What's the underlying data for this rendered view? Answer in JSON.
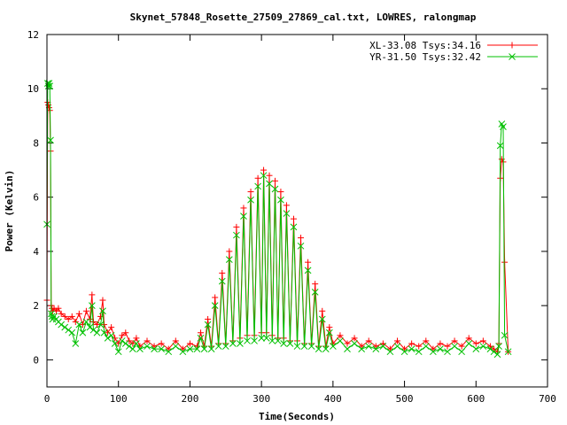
{
  "chart_data": {
    "type": "line",
    "title": "Skynet_57848_Rosette_27509_27869_cal.txt, LOWRES, ralongmap",
    "xlabel": "Time(Seconds)",
    "ylabel": "Power (Kelvin)",
    "xlim": [
      0,
      700
    ],
    "ylim": [
      -1,
      12
    ],
    "xticks": [
      0,
      100,
      200,
      300,
      400,
      500,
      600,
      700
    ],
    "yticks": [
      0,
      2,
      4,
      6,
      8,
      10,
      12
    ],
    "grid": false,
    "legend_position": "top-right",
    "markers": "points",
    "series": [
      {
        "name": "XL-33.08 Tsys:34.16",
        "color": "#ff0000",
        "marker": "plus",
        "x": [
          0,
          1,
          2,
          3,
          4,
          5,
          6,
          7,
          8,
          10,
          13,
          16,
          20,
          25,
          30,
          35,
          40,
          45,
          50,
          55,
          60,
          63,
          65,
          70,
          75,
          78,
          80,
          85,
          90,
          95,
          100,
          105,
          110,
          115,
          120,
          125,
          130,
          140,
          150,
          160,
          170,
          180,
          190,
          200,
          210,
          215,
          220,
          225,
          230,
          235,
          240,
          245,
          250,
          255,
          260,
          265,
          270,
          275,
          280,
          285,
          290,
          295,
          300,
          303,
          307,
          311,
          315,
          319,
          323,
          327,
          331,
          335,
          340,
          345,
          350,
          355,
          360,
          365,
          370,
          375,
          380,
          385,
          390,
          395,
          400,
          410,
          420,
          430,
          440,
          450,
          460,
          470,
          480,
          490,
          500,
          510,
          520,
          530,
          540,
          550,
          560,
          570,
          580,
          590,
          600,
          610,
          620,
          625,
          630,
          632,
          634,
          636,
          638,
          640,
          645
        ],
        "values": [
          2.2,
          9.5,
          9.4,
          9.3,
          9.2,
          7.7,
          2.0,
          1.9,
          1.8,
          1.9,
          1.8,
          1.9,
          1.7,
          1.6,
          1.5,
          1.6,
          1.4,
          1.7,
          1.3,
          1.8,
          1.5,
          2.4,
          1.4,
          1.3,
          1.6,
          2.2,
          1.3,
          1.0,
          1.2,
          0.8,
          0.6,
          0.9,
          1.0,
          0.7,
          0.6,
          0.8,
          0.5,
          0.7,
          0.5,
          0.6,
          0.4,
          0.7,
          0.4,
          0.6,
          0.5,
          1.0,
          0.5,
          1.5,
          0.5,
          2.3,
          0.6,
          3.2,
          0.6,
          4.0,
          0.7,
          4.9,
          0.8,
          5.6,
          0.9,
          6.2,
          0.9,
          6.7,
          1.0,
          7.0,
          1.0,
          6.8,
          0.9,
          6.6,
          0.8,
          6.2,
          0.8,
          5.7,
          0.7,
          5.2,
          0.7,
          4.5,
          0.6,
          3.6,
          0.6,
          2.8,
          0.5,
          1.8,
          0.5,
          1.2,
          0.6,
          0.9,
          0.6,
          0.8,
          0.5,
          0.7,
          0.5,
          0.6,
          0.4,
          0.7,
          0.4,
          0.6,
          0.5,
          0.7,
          0.4,
          0.6,
          0.5,
          0.7,
          0.5,
          0.8,
          0.6,
          0.7,
          0.5,
          0.4,
          0.3,
          0.6,
          6.7,
          7.4,
          7.3,
          3.6,
          0.3
        ]
      },
      {
        "name": "YR-31.50 Tsys:32.42",
        "color": "#00c000",
        "marker": "cross",
        "x": [
          0,
          1,
          2,
          3,
          4,
          5,
          6,
          7,
          8,
          10,
          13,
          16,
          20,
          25,
          30,
          35,
          40,
          45,
          50,
          55,
          60,
          63,
          65,
          70,
          75,
          78,
          80,
          85,
          90,
          95,
          100,
          105,
          110,
          115,
          120,
          125,
          130,
          140,
          150,
          160,
          170,
          180,
          190,
          200,
          210,
          215,
          220,
          225,
          230,
          235,
          240,
          245,
          250,
          255,
          260,
          265,
          270,
          275,
          280,
          285,
          290,
          295,
          300,
          303,
          307,
          311,
          315,
          319,
          323,
          327,
          331,
          335,
          340,
          345,
          350,
          355,
          360,
          365,
          370,
          375,
          380,
          385,
          390,
          395,
          400,
          410,
          420,
          430,
          440,
          450,
          460,
          470,
          480,
          490,
          500,
          510,
          520,
          530,
          540,
          550,
          560,
          570,
          580,
          590,
          600,
          610,
          620,
          625,
          630,
          632,
          634,
          636,
          638,
          640,
          645
        ],
        "values": [
          5.0,
          10.2,
          10.1,
          10.2,
          10.1,
          8.1,
          1.7,
          1.6,
          1.5,
          1.6,
          1.5,
          1.4,
          1.3,
          1.2,
          1.1,
          1.0,
          0.6,
          1.3,
          1.0,
          1.4,
          1.2,
          2.0,
          1.1,
          1.0,
          1.3,
          1.8,
          1.0,
          0.8,
          0.9,
          0.6,
          0.3,
          0.7,
          0.6,
          0.5,
          0.4,
          0.6,
          0.4,
          0.5,
          0.4,
          0.4,
          0.3,
          0.5,
          0.3,
          0.4,
          0.4,
          0.8,
          0.4,
          1.3,
          0.4,
          2.0,
          0.5,
          2.9,
          0.5,
          3.7,
          0.6,
          4.6,
          0.6,
          5.3,
          0.7,
          5.9,
          0.7,
          6.4,
          0.8,
          6.8,
          0.8,
          6.5,
          0.7,
          6.3,
          0.7,
          5.9,
          0.6,
          5.4,
          0.6,
          4.9,
          0.5,
          4.2,
          0.5,
          3.3,
          0.5,
          2.5,
          0.4,
          1.5,
          0.4,
          1.0,
          0.5,
          0.7,
          0.4,
          0.6,
          0.4,
          0.5,
          0.4,
          0.5,
          0.3,
          0.5,
          0.3,
          0.4,
          0.3,
          0.5,
          0.3,
          0.4,
          0.3,
          0.5,
          0.3,
          0.6,
          0.4,
          0.5,
          0.4,
          0.3,
          0.2,
          0.5,
          7.9,
          8.7,
          8.6,
          0.9,
          0.3
        ]
      }
    ]
  }
}
